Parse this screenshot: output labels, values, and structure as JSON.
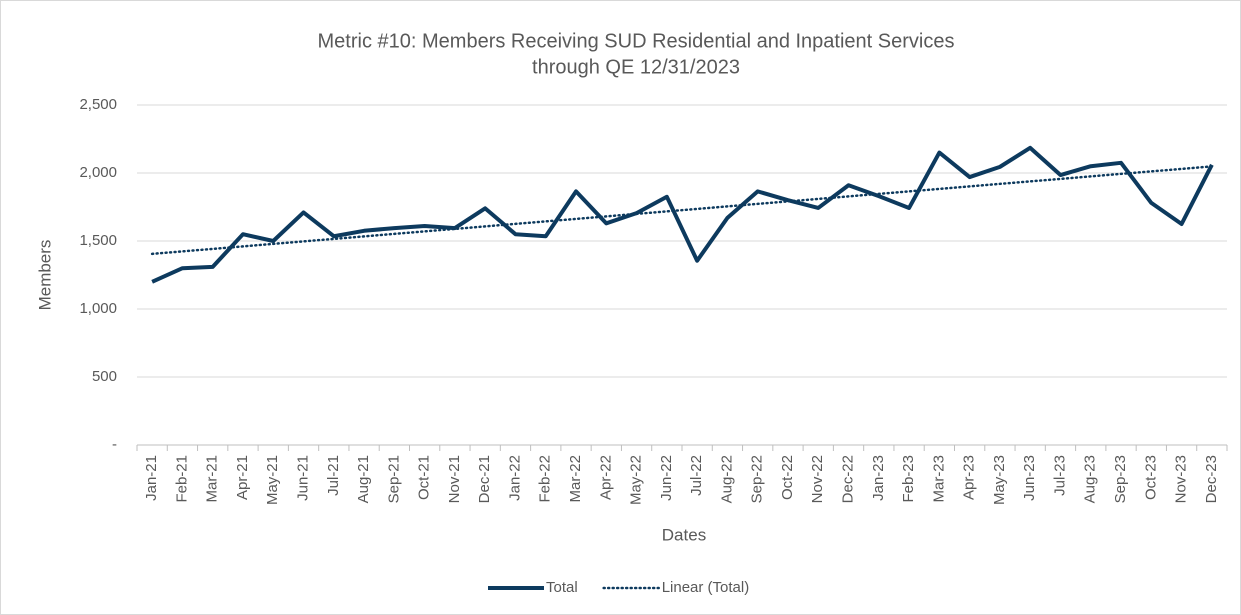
{
  "chart_data": {
    "type": "line",
    "title": [
      "Metric #10: Members Receiving SUD Residential and Inpatient Services",
      "through QE 12/31/2023"
    ],
    "xlabel": "Dates",
    "ylabel": "Members",
    "categories": [
      "Jan-21",
      "Feb-21",
      "Mar-21",
      "Apr-21",
      "May-21",
      "Jun-21",
      "Jul-21",
      "Aug-21",
      "Sep-21",
      "Oct-21",
      "Nov-21",
      "Dec-21",
      "Jan-22",
      "Feb-22",
      "Mar-22",
      "Apr-22",
      "May-22",
      "Jun-22",
      "Jul-22",
      "Aug-22",
      "Sep-22",
      "Oct-22",
      "Nov-22",
      "Dec-22",
      "Jan-23",
      "Feb-23",
      "Mar-23",
      "Apr-23",
      "May-23",
      "Jun-23",
      "Jul-23",
      "Aug-23",
      "Sep-23",
      "Oct-23",
      "Nov-23",
      "Dec-23"
    ],
    "series": [
      {
        "name": "Total",
        "color": "#0d3a5e",
        "values": [
          1200,
          1300,
          1310,
          1550,
          1500,
          1710,
          1535,
          1575,
          1595,
          1610,
          1595,
          1740,
          1550,
          1535,
          1865,
          1630,
          1705,
          1825,
          1355,
          1670,
          1865,
          1800,
          1743,
          1910,
          1830,
          1743,
          2150,
          1970,
          2045,
          2185,
          1985,
          2050,
          2075,
          1780,
          1625,
          2060
        ]
      },
      {
        "name": "Linear (Total)",
        "color": "#0d3a5e",
        "trendline": "linear",
        "dash": "dotted"
      }
    ],
    "ylim": [
      0,
      2500
    ],
    "yticks": [
      {
        "value": 0,
        "label": "-"
      },
      500,
      {
        "value": 1000,
        "label": "1,000"
      },
      {
        "value": 1500,
        "label": "1,500"
      },
      {
        "value": 2000,
        "label": "2,000"
      },
      {
        "value": 2500,
        "label": "2,500"
      }
    ],
    "grid": true,
    "legend": "bottom"
  }
}
